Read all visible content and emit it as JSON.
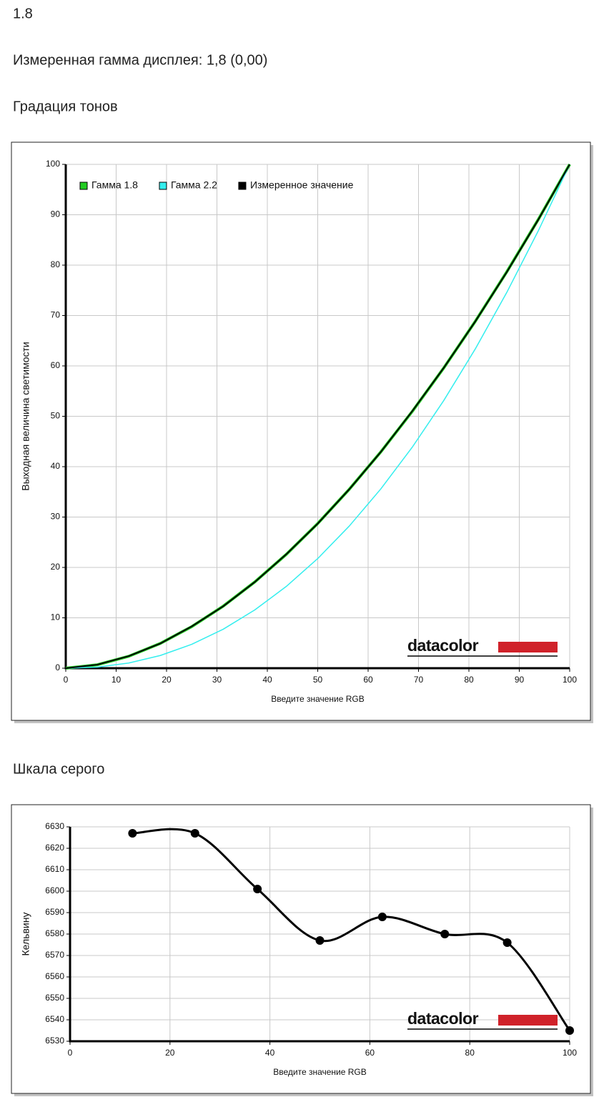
{
  "header": {
    "value": "1.8",
    "measured_gamma": "Измеренная гамма дисплея: 1,8 (0,00)"
  },
  "logo": "datacolor",
  "chart_data": [
    {
      "type": "line",
      "title": "Градация тонов",
      "x_label": "Введите значение RGB",
      "y_label": "Выходная величина светимости",
      "x": [
        0,
        6.25,
        12.5,
        18.75,
        25,
        31.25,
        37.5,
        43.75,
        50,
        56.25,
        62.5,
        68.75,
        75,
        81.25,
        87.5,
        93.75,
        100
      ],
      "series": [
        {
          "name": "Гамма 1.8",
          "color": "#22cc22",
          "values": [
            0,
            0.68,
            2.37,
            4.91,
            8.25,
            12.32,
            17.11,
            22.58,
            28.72,
            35.5,
            42.91,
            50.95,
            59.58,
            68.82,
            78.64,
            89.03,
            100
          ]
        },
        {
          "name": "Гамма 2.2",
          "color": "#33eeee",
          "values": [
            0,
            0.22,
            1.03,
            2.52,
            4.74,
            7.74,
            11.56,
            16.22,
            21.76,
            28.2,
            35.56,
            43.85,
            53.11,
            63.34,
            74.55,
            86.77,
            100
          ]
        },
        {
          "name": "Измеренное значение",
          "color": "#000000",
          "values": [
            0,
            0.7,
            2.4,
            4.9,
            8.3,
            12.3,
            17.1,
            22.6,
            28.7,
            35.5,
            42.9,
            51.0,
            59.6,
            68.8,
            78.6,
            89.0,
            100
          ]
        }
      ],
      "xlim": [
        0,
        100
      ],
      "xticks": [
        0,
        10,
        20,
        30,
        40,
        50,
        60,
        70,
        80,
        90,
        100
      ],
      "ylim": [
        0,
        100
      ],
      "yticks": [
        0,
        10,
        20,
        30,
        40,
        50,
        60,
        70,
        80,
        90,
        100
      ],
      "grid": true,
      "legend": "upper left"
    },
    {
      "type": "line",
      "title": "Шкала серого",
      "x_label": "Введите значение RGB",
      "y_label": "Кельвину",
      "x": [
        12.5,
        25,
        37.5,
        50,
        62.5,
        75,
        87.5,
        100
      ],
      "values": [
        6627,
        6627,
        6601,
        6577,
        6588,
        6580,
        6576,
        6535
      ],
      "color": "#000000",
      "smooth": true,
      "markers": true,
      "xlim": [
        0,
        100
      ],
      "xticks": [
        0,
        20,
        40,
        60,
        80,
        100
      ],
      "ylim": [
        6530,
        6630
      ],
      "yticks": [
        6530,
        6540,
        6550,
        6560,
        6570,
        6580,
        6590,
        6600,
        6610,
        6620,
        6630
      ],
      "grid": true
    }
  ]
}
